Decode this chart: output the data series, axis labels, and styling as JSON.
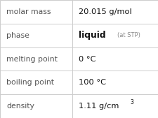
{
  "rows": [
    {
      "label": "molar mass",
      "value": "20.015 g/mol",
      "value_bold": false,
      "small_suffix": null,
      "superscript": null
    },
    {
      "label": "phase",
      "value": "liquid",
      "value_bold": true,
      "small_suffix": "(at STP)",
      "superscript": null
    },
    {
      "label": "melting point",
      "value": "0 °C",
      "value_bold": false,
      "small_suffix": null,
      "superscript": null
    },
    {
      "label": "boiling point",
      "value": "100 °C",
      "value_bold": false,
      "small_suffix": null,
      "superscript": null
    },
    {
      "label": "density",
      "value": "1.11 g/cm",
      "value_bold": false,
      "small_suffix": null,
      "superscript": "3"
    }
  ],
  "col_split": 0.455,
  "bg_color": "#ffffff",
  "border_color": "#cccccc",
  "label_fontsize": 7.8,
  "value_fontsize": 8.2,
  "bold_fontsize": 8.8,
  "small_fontsize": 6.0,
  "sup_fontsize": 5.5,
  "label_color": "#555555",
  "value_color": "#111111",
  "small_color": "#888888"
}
